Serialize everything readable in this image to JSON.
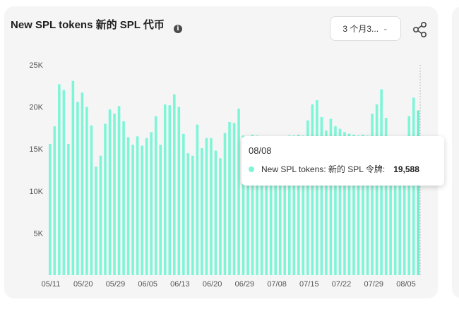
{
  "header": {
    "title": "New SPL tokens 新的 SPL 代币",
    "info_icon": "info-icon",
    "range_label": "3 个月3...",
    "share_icon": "share-icon"
  },
  "colors": {
    "bar": "#7ff5d8",
    "bar_highlight": "#6fecd0",
    "axis_text": "#555555"
  },
  "chart_data": {
    "type": "bar",
    "title": "New SPL tokens 新的 SPL 代币",
    "ylim": [
      0,
      25000
    ],
    "yticks": [
      {
        "value": 5000,
        "label": "5K"
      },
      {
        "value": 10000,
        "label": "10K"
      },
      {
        "value": 15000,
        "label": "15K"
      },
      {
        "value": 20000,
        "label": "20K"
      },
      {
        "value": 25000,
        "label": "25K"
      }
    ],
    "xtick_labels": [
      "05/11",
      "05/20",
      "05/29",
      "06/05",
      "06/13",
      "06/20",
      "06/29",
      "07/08",
      "07/15",
      "07/22",
      "07/29",
      "08/05"
    ],
    "series": [
      {
        "name": "New SPL tokens: 新的 SPL 令牌",
        "values": [
          15600,
          17700,
          22700,
          22000,
          15600,
          23100,
          20600,
          21700,
          20000,
          17800,
          12900,
          14200,
          18000,
          19700,
          19200,
          20100,
          18300,
          16400,
          15500,
          16500,
          15400,
          16300,
          17000,
          18900,
          15500,
          20300,
          20200,
          21500,
          20000,
          16800,
          14500,
          14200,
          17900,
          15100,
          16300,
          16300,
          14800,
          13900,
          16900,
          18200,
          18100,
          19800,
          16600,
          15500,
          16700,
          16600,
          16500,
          16400,
          16500,
          16500,
          16400,
          16500,
          16600,
          16600,
          16700,
          16600,
          18400,
          20300,
          20800,
          18800,
          17200,
          18600,
          17700,
          17400,
          17000,
          16800,
          16700,
          16600,
          16700,
          16600,
          19200,
          20300,
          22100,
          18700,
          16500,
          16400,
          15000,
          15200,
          18900,
          21100,
          19588
        ]
      }
    ],
    "highlight": {
      "date": "08/08",
      "series_label": "New SPL tokens: 新的 SPL 令牌:",
      "value_label": "19,588"
    }
  }
}
